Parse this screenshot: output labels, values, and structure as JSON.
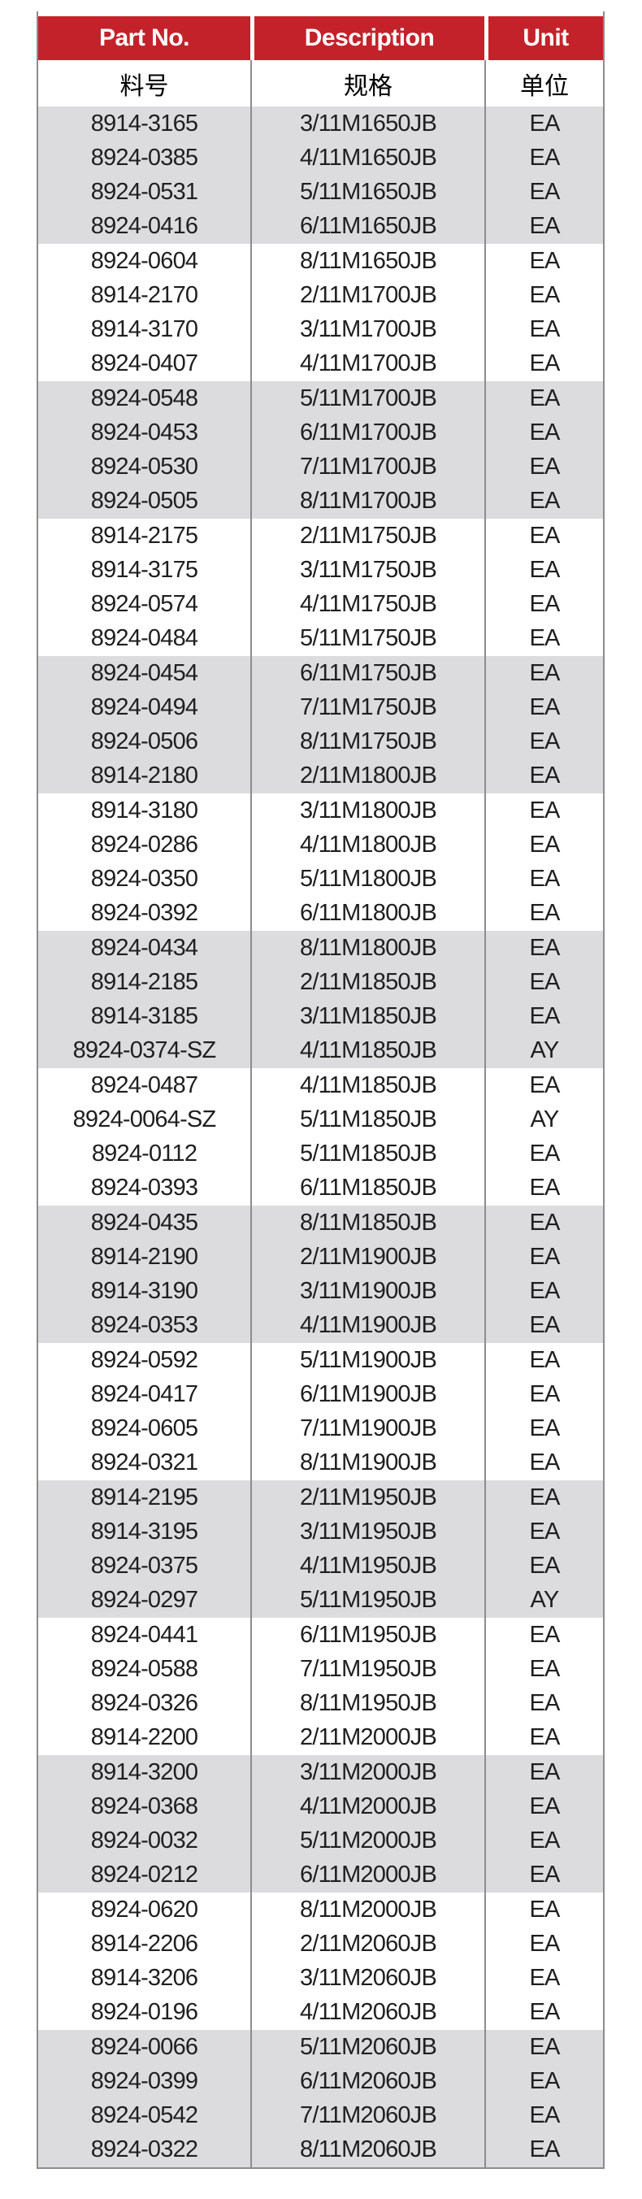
{
  "table": {
    "columns": [
      {
        "id": "part_no",
        "label": "Part No.",
        "label_zh": "料号"
      },
      {
        "id": "description",
        "label": "Description",
        "label_zh": "规格"
      },
      {
        "id": "unit",
        "label": "Unit",
        "label_zh": "单位"
      }
    ],
    "colors": {
      "header_bg": "#C4222B",
      "header_text": "#FFFFFF",
      "band_gray": "#DCDCDE",
      "band_white": "#FFFFFF",
      "body_text": "#1F1F1F",
      "border": "#8C8C8C"
    },
    "rows": [
      [
        "8914-3165",
        "3/11M1650JB",
        "EA"
      ],
      [
        "8924-0385",
        "4/11M1650JB",
        "EA"
      ],
      [
        "8924-0531",
        "5/11M1650JB",
        "EA"
      ],
      [
        "8924-0416",
        "6/11M1650JB",
        "EA"
      ],
      [
        "8924-0604",
        "8/11M1650JB",
        "EA"
      ],
      [
        "8914-2170",
        "2/11M1700JB",
        "EA"
      ],
      [
        "8914-3170",
        "3/11M1700JB",
        "EA"
      ],
      [
        "8924-0407",
        "4/11M1700JB",
        "EA"
      ],
      [
        "8924-0548",
        "5/11M1700JB",
        "EA"
      ],
      [
        "8924-0453",
        "6/11M1700JB",
        "EA"
      ],
      [
        "8924-0530",
        "7/11M1700JB",
        "EA"
      ],
      [
        "8924-0505",
        "8/11M1700JB",
        "EA"
      ],
      [
        "8914-2175",
        "2/11M1750JB",
        "EA"
      ],
      [
        "8914-3175",
        "3/11M1750JB",
        "EA"
      ],
      [
        "8924-0574",
        "4/11M1750JB",
        "EA"
      ],
      [
        "8924-0484",
        "5/11M1750JB",
        "EA"
      ],
      [
        "8924-0454",
        "6/11M1750JB",
        "EA"
      ],
      [
        "8924-0494",
        "7/11M1750JB",
        "EA"
      ],
      [
        "8924-0506",
        "8/11M1750JB",
        "EA"
      ],
      [
        "8914-2180",
        "2/11M1800JB",
        "EA"
      ],
      [
        "8914-3180",
        "3/11M1800JB",
        "EA"
      ],
      [
        "8924-0286",
        "4/11M1800JB",
        "EA"
      ],
      [
        "8924-0350",
        "5/11M1800JB",
        "EA"
      ],
      [
        "8924-0392",
        "6/11M1800JB",
        "EA"
      ],
      [
        "8924-0434",
        "8/11M1800JB",
        "EA"
      ],
      [
        "8914-2185",
        "2/11M1850JB",
        "EA"
      ],
      [
        "8914-3185",
        "3/11M1850JB",
        "EA"
      ],
      [
        "8924-0374-SZ",
        "4/11M1850JB",
        "AY"
      ],
      [
        "8924-0487",
        "4/11M1850JB",
        "EA"
      ],
      [
        "8924-0064-SZ",
        "5/11M1850JB",
        "AY"
      ],
      [
        "8924-0112",
        "5/11M1850JB",
        "EA"
      ],
      [
        "8924-0393",
        "6/11M1850JB",
        "EA"
      ],
      [
        "8924-0435",
        "8/11M1850JB",
        "EA"
      ],
      [
        "8914-2190",
        "2/11M1900JB",
        "EA"
      ],
      [
        "8914-3190",
        "3/11M1900JB",
        "EA"
      ],
      [
        "8924-0353",
        "4/11M1900JB",
        "EA"
      ],
      [
        "8924-0592",
        "5/11M1900JB",
        "EA"
      ],
      [
        "8924-0417",
        "6/11M1900JB",
        "EA"
      ],
      [
        "8924-0605",
        "7/11M1900JB",
        "EA"
      ],
      [
        "8924-0321",
        "8/11M1900JB",
        "EA"
      ],
      [
        "8914-2195",
        "2/11M1950JB",
        "EA"
      ],
      [
        "8914-3195",
        "3/11M1950JB",
        "EA"
      ],
      [
        "8924-0375",
        "4/11M1950JB",
        "EA"
      ],
      [
        "8924-0297",
        "5/11M1950JB",
        "AY"
      ],
      [
        "8924-0441",
        "6/11M1950JB",
        "EA"
      ],
      [
        "8924-0588",
        "7/11M1950JB",
        "EA"
      ],
      [
        "8924-0326",
        "8/11M1950JB",
        "EA"
      ],
      [
        "8914-2200",
        "2/11M2000JB",
        "EA"
      ],
      [
        "8914-3200",
        "3/11M2000JB",
        "EA"
      ],
      [
        "8924-0368",
        "4/11M2000JB",
        "EA"
      ],
      [
        "8924-0032",
        "5/11M2000JB",
        "EA"
      ],
      [
        "8924-0212",
        "6/11M2000JB",
        "EA"
      ],
      [
        "8924-0620",
        "8/11M2000JB",
        "EA"
      ],
      [
        "8914-2206",
        "2/11M2060JB",
        "EA"
      ],
      [
        "8914-3206",
        "3/11M2060JB",
        "EA"
      ],
      [
        "8924-0196",
        "4/11M2060JB",
        "EA"
      ],
      [
        "8924-0066",
        "5/11M2060JB",
        "EA"
      ],
      [
        "8924-0399",
        "6/11M2060JB",
        "EA"
      ],
      [
        "8924-0542",
        "7/11M2060JB",
        "EA"
      ],
      [
        "8924-0322",
        "8/11M2060JB",
        "EA"
      ]
    ]
  }
}
